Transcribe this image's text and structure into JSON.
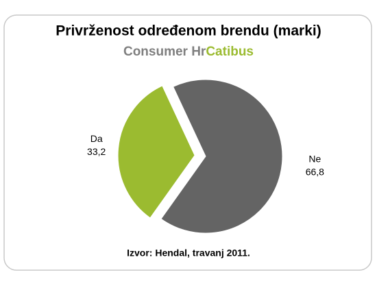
{
  "chart_data": {
    "type": "pie",
    "title": "Privrženost određenom brendu (marki)",
    "subtitle_parts": [
      {
        "text": "Consumer Hr",
        "color": "#7f7f7f"
      },
      {
        "text": "Catibus",
        "color": "#9bbb30"
      }
    ],
    "categories": [
      "Da",
      "Ne"
    ],
    "values": [
      33.2,
      66.8
    ],
    "value_labels": [
      "33,2",
      "66,8"
    ],
    "colors": [
      "#9bbb30",
      "#646464"
    ],
    "exploded": [
      true,
      false
    ],
    "source": "Izvor: Hendal, travanj 2011."
  }
}
